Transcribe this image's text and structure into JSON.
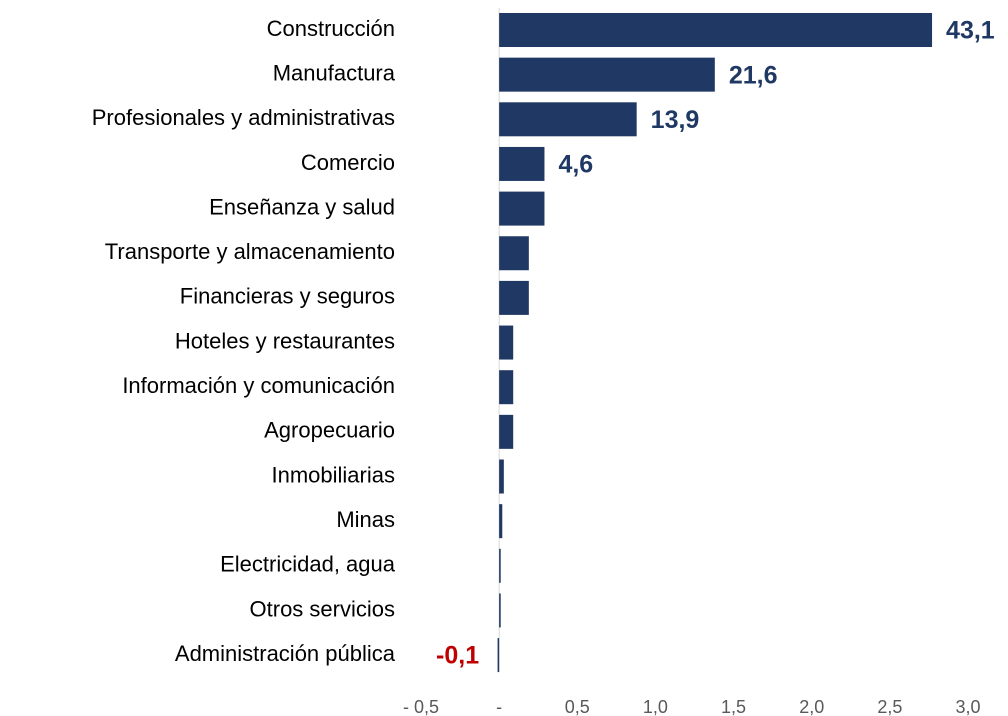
{
  "chart_data": {
    "type": "barh",
    "categories": [
      "Construcción",
      "Manufactura",
      "Profesionales y administrativas",
      "Comercio",
      "Enseñanza y salud",
      "Transporte y almacenamiento",
      "Financieras y seguros",
      "Hoteles y restaurantes",
      "Información y comunicación",
      "Agropecuario",
      "Inmobiliarias",
      "Minas",
      "Electricidad, agua",
      "Otros servicios",
      "Administración pública"
    ],
    "values": [
      2.77,
      1.38,
      0.88,
      0.29,
      0.29,
      0.19,
      0.19,
      0.09,
      0.09,
      0.09,
      0.03,
      0.02,
      0.01,
      0.01,
      -0.01
    ],
    "annotations": [
      "43,1",
      "21,6",
      "13,9",
      "4,6",
      null,
      null,
      null,
      null,
      null,
      null,
      null,
      null,
      null,
      null,
      "-0,1"
    ],
    "color": "#203864",
    "negative_label_color": "#c00000",
    "xlim": [
      -0.5,
      3.0
    ],
    "xticks": [
      {
        "value": -0.5,
        "label": "- 0,5"
      },
      {
        "value": 0,
        "label": "-"
      },
      {
        "value": 0.5,
        "label": "0,5"
      },
      {
        "value": 1.0,
        "label": "1,0"
      },
      {
        "value": 1.5,
        "label": "1,5"
      },
      {
        "value": 2.0,
        "label": "2,0"
      },
      {
        "value": 2.5,
        "label": "2,5"
      },
      {
        "value": 3.0,
        "label": "3,0"
      }
    ],
    "grid": false
  }
}
